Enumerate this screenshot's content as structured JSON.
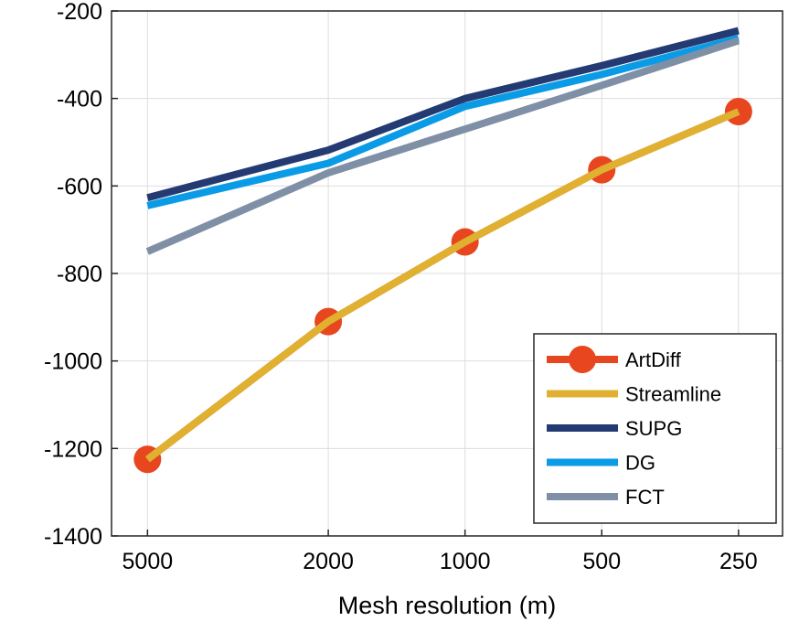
{
  "chart_data": {
    "type": "line",
    "title": "",
    "xlabel": "Mesh resolution (m)",
    "ylabel": "",
    "x_scale": "log",
    "x_reversed": true,
    "categories": [
      "5000",
      "2000",
      "1000",
      "500",
      "250"
    ],
    "x": [
      5000,
      2000,
      1000,
      500,
      250
    ],
    "xlim": [
      6000,
      200
    ],
    "ylim": [
      -1400,
      -200
    ],
    "yticks": [
      -200,
      -400,
      -600,
      -800,
      -1000,
      -1200,
      -1400
    ],
    "grid": true,
    "legend_position": "bottom-right",
    "series": [
      {
        "name": "ArtDiff",
        "values": [
          -1225,
          -910,
          -728,
          -563,
          -430
        ],
        "color": "#E8461E",
        "marker": "circle"
      },
      {
        "name": "Streamline",
        "values": [
          -1225,
          -910,
          -728,
          -563,
          -430
        ],
        "color": "#E0B030",
        "marker": "none"
      },
      {
        "name": "SUPG",
        "values": [
          -627,
          -518,
          -400,
          -325,
          -245
        ],
        "color": "#243A73",
        "marker": "none"
      },
      {
        "name": "DG",
        "values": [
          -645,
          -548,
          -418,
          -345,
          -262
        ],
        "color": "#0A9BE6",
        "marker": "none"
      },
      {
        "name": "FCT",
        "values": [
          -750,
          -570,
          -470,
          -370,
          -268
        ],
        "color": "#7F8FA6",
        "marker": "none"
      }
    ]
  }
}
